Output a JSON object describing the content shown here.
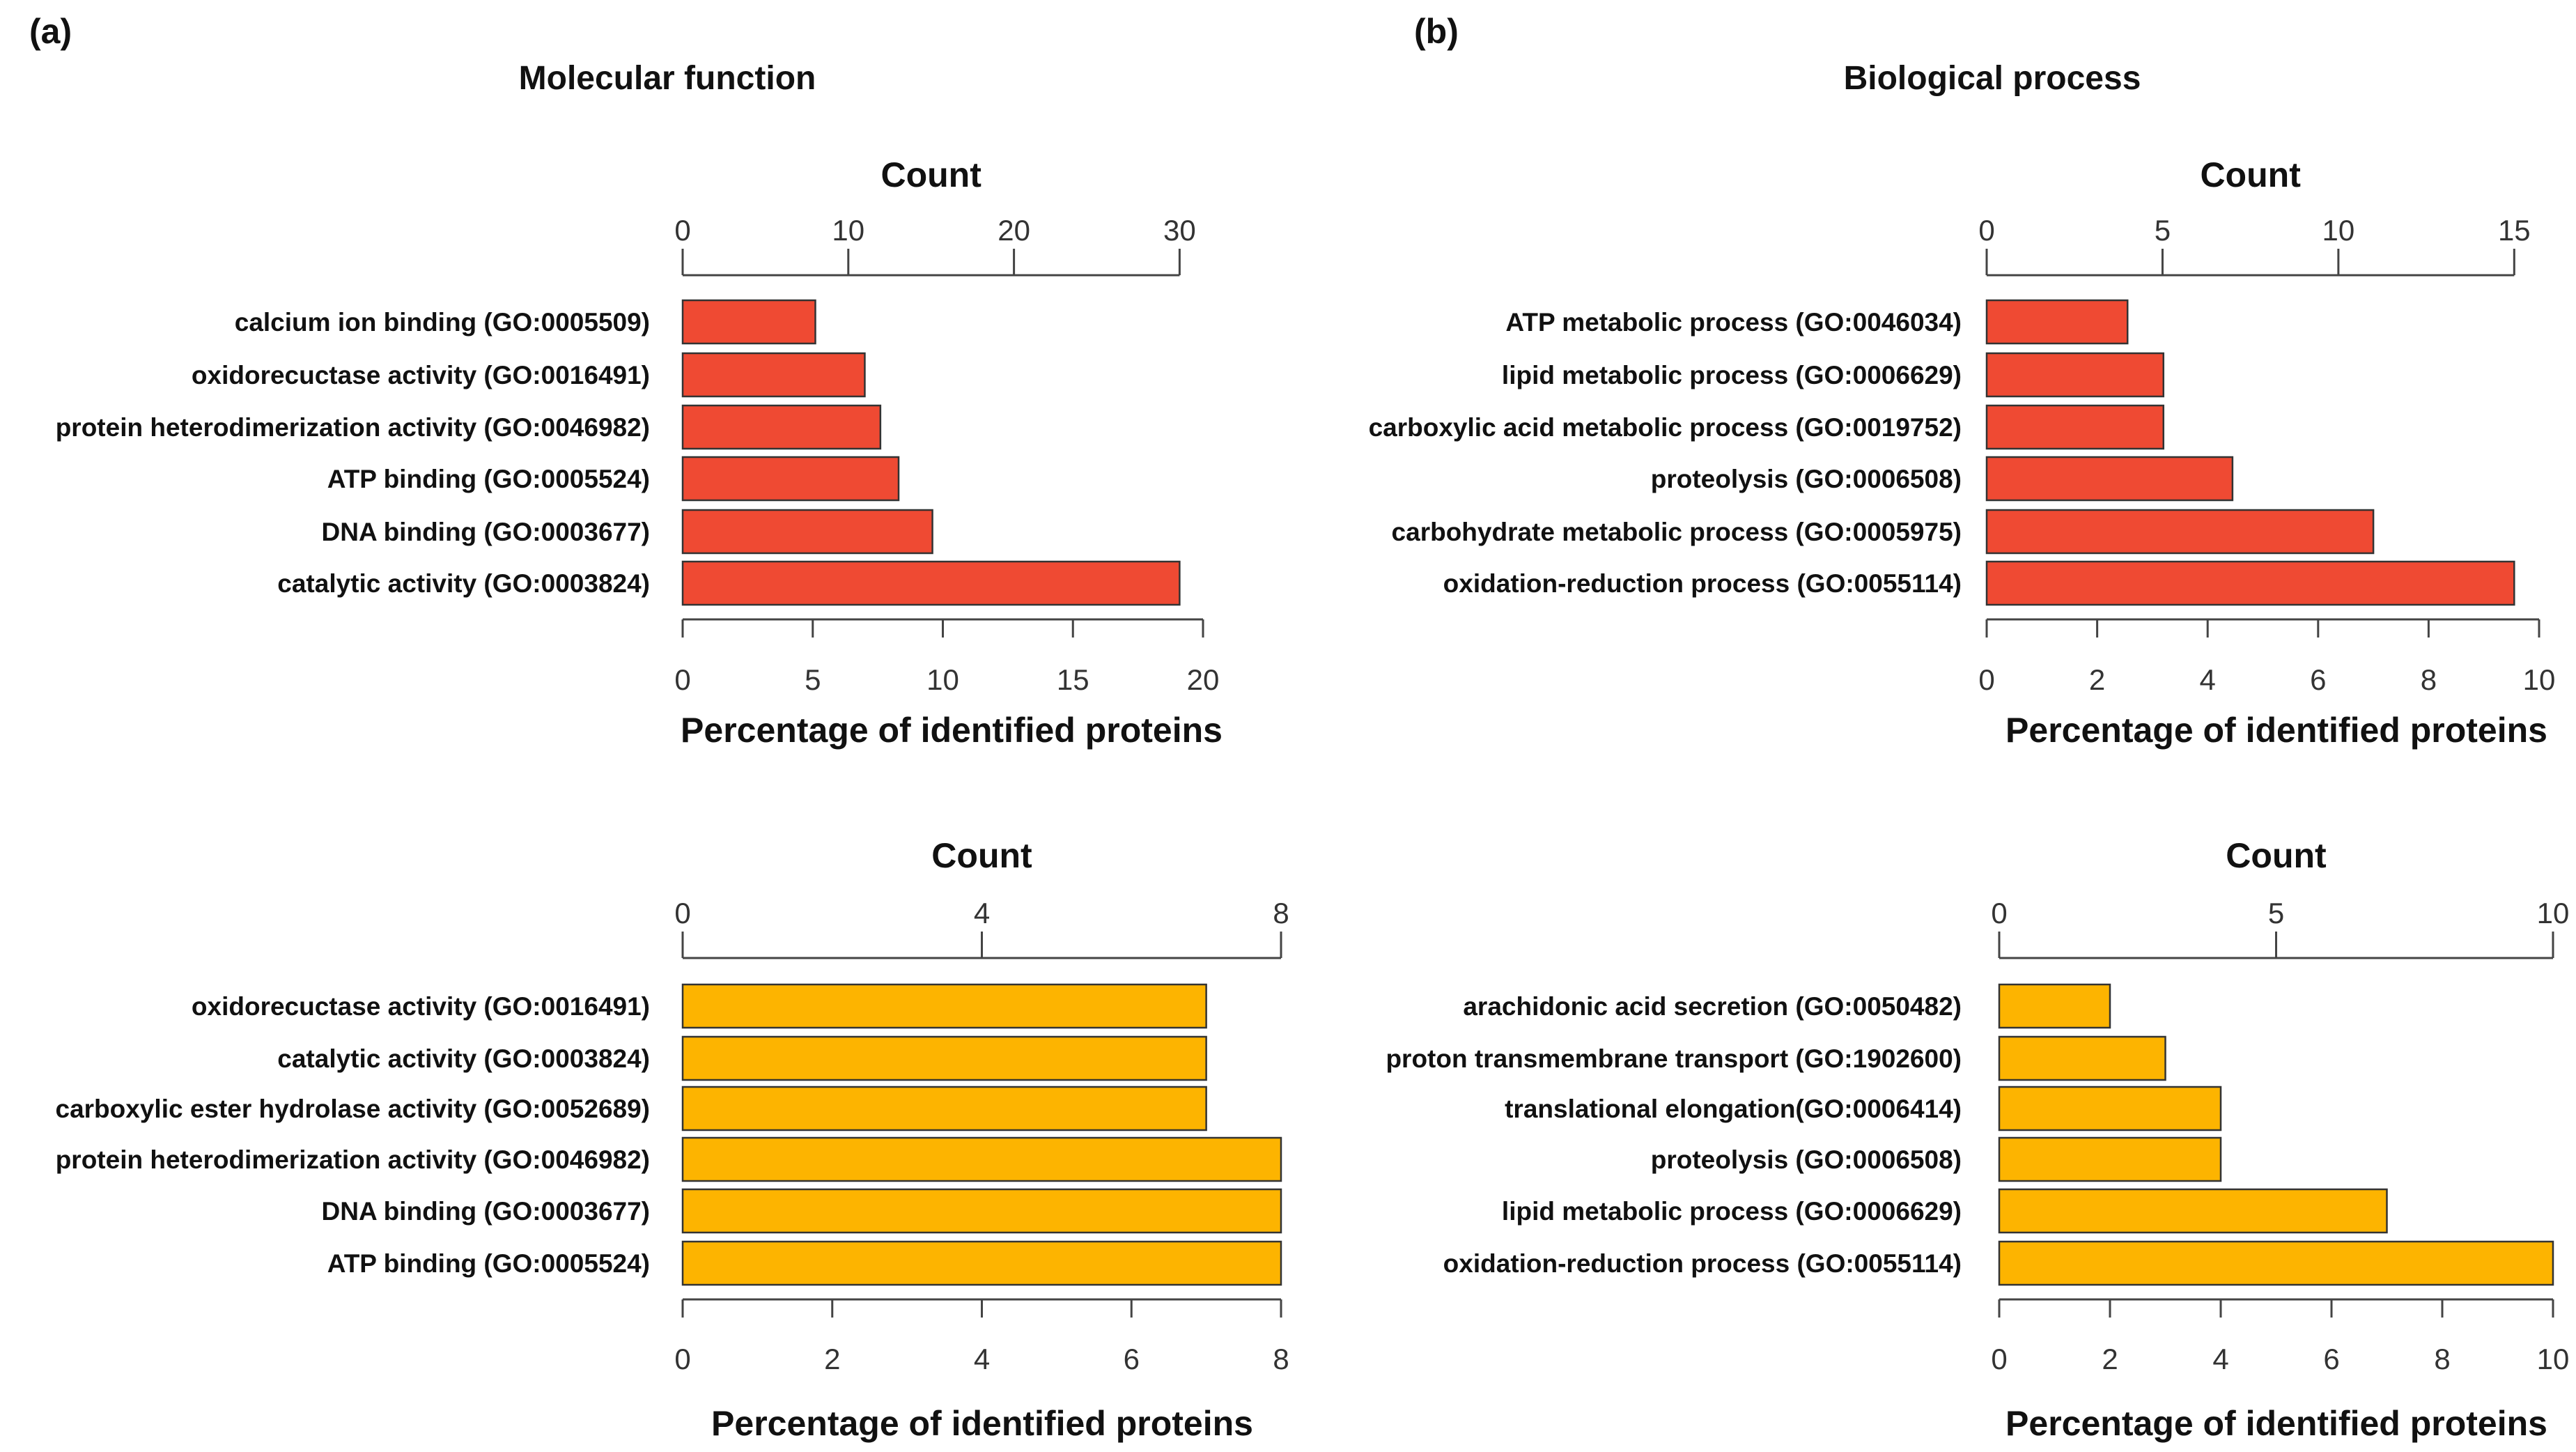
{
  "panel_labels": [
    "(a)",
    "(b)"
  ],
  "section_titles": [
    "Molecular function",
    "Biological process"
  ],
  "colors": {
    "upregulated": "#ef4a33",
    "downregulated": "#fdb400",
    "bar_outline": "#333333",
    "axis": "#444444",
    "text": "#111111"
  },
  "chart_data": [
    {
      "type": "bar",
      "orientation": "horizontal",
      "panel": "(a)",
      "section": "Molecular function",
      "color_key": "upregulated",
      "categories": [
        "calcium ion binding (GO:0005509)",
        "oxidorecuctase activity (GO:0016491)",
        "protein heterodimerization activity (GO:0046982)",
        "ATP binding (GO:0005524)",
        "DNA binding (GO:0003677)",
        "catalytic activity (GO:0003824)"
      ],
      "values": [
        5.1,
        7.0,
        7.6,
        8.3,
        9.6,
        19.1
      ],
      "xlabel": "Percentage of identified proteins",
      "xlim": [
        0,
        20
      ],
      "xticks": [
        0,
        5,
        10,
        15,
        20
      ],
      "secondary_axis": {
        "label": "Count",
        "range": [
          0,
          30
        ],
        "ticks": [
          0,
          10,
          20,
          30
        ],
        "top_percentage": 19.1
      }
    },
    {
      "type": "bar",
      "orientation": "horizontal",
      "panel": "(b)",
      "section": "Biological process",
      "color_key": "upregulated",
      "categories": [
        "ATP metabolic process (GO:0046034)",
        "lipid metabolic process (GO:0006629)",
        "carboxylic acid metabolic process (GO:0019752)",
        "proteolysis (GO:0006508)",
        "carbohydrate metabolic process (GO:0005975)",
        "oxidation-reduction process (GO:0055114)"
      ],
      "values": [
        2.55,
        3.2,
        3.2,
        4.45,
        7.0,
        9.55
      ],
      "xlabel": "Percentage of identified proteins",
      "xlim": [
        0,
        10
      ],
      "xticks": [
        0,
        2,
        4,
        6,
        8,
        10
      ],
      "secondary_axis": {
        "label": "Count",
        "range": [
          0,
          15
        ],
        "ticks": [
          0,
          5,
          10,
          15
        ],
        "top_percentage": 9.55
      }
    },
    {
      "type": "bar",
      "orientation": "horizontal",
      "panel": "(a)",
      "section": "Molecular function",
      "color_key": "downregulated",
      "categories": [
        "oxidorecuctase activity (GO:0016491)",
        "catalytic activity (GO:0003824)",
        "carboxylic ester hydrolase activity (GO:0052689)",
        "protein heterodimerization activity (GO:0046982)",
        "DNA binding (GO:0003677)",
        "ATP binding (GO:0005524)"
      ],
      "values": [
        7.0,
        7.0,
        7.0,
        8.0,
        8.0,
        8.0
      ],
      "xlabel": "Percentage of identified proteins",
      "xlim": [
        0,
        8
      ],
      "xticks": [
        0,
        2,
        4,
        6,
        8
      ],
      "secondary_axis": {
        "label": "Count",
        "range": [
          0,
          8
        ],
        "ticks": [
          0,
          4,
          8
        ],
        "top_percentage": 8
      }
    },
    {
      "type": "bar",
      "orientation": "horizontal",
      "panel": "(b)",
      "section": "Biological process",
      "color_key": "downregulated",
      "categories": [
        "arachidonic acid secretion (GO:0050482)",
        "proton transmembrane transport (GO:1902600)",
        "translational elongation(GO:0006414)",
        "proteolysis (GO:0006508)",
        "lipid metabolic process (GO:0006629)",
        "oxidation-reduction process (GO:0055114)"
      ],
      "values": [
        2.0,
        3.0,
        4.0,
        4.0,
        7.0,
        10.0
      ],
      "xlabel": "Percentage of identified proteins",
      "xlim": [
        0,
        10
      ],
      "xticks": [
        0,
        2,
        4,
        6,
        8,
        10
      ],
      "secondary_axis": {
        "label": "Count",
        "range": [
          0,
          10
        ],
        "ticks": [
          0,
          5,
          10
        ],
        "top_percentage": 10
      }
    }
  ]
}
